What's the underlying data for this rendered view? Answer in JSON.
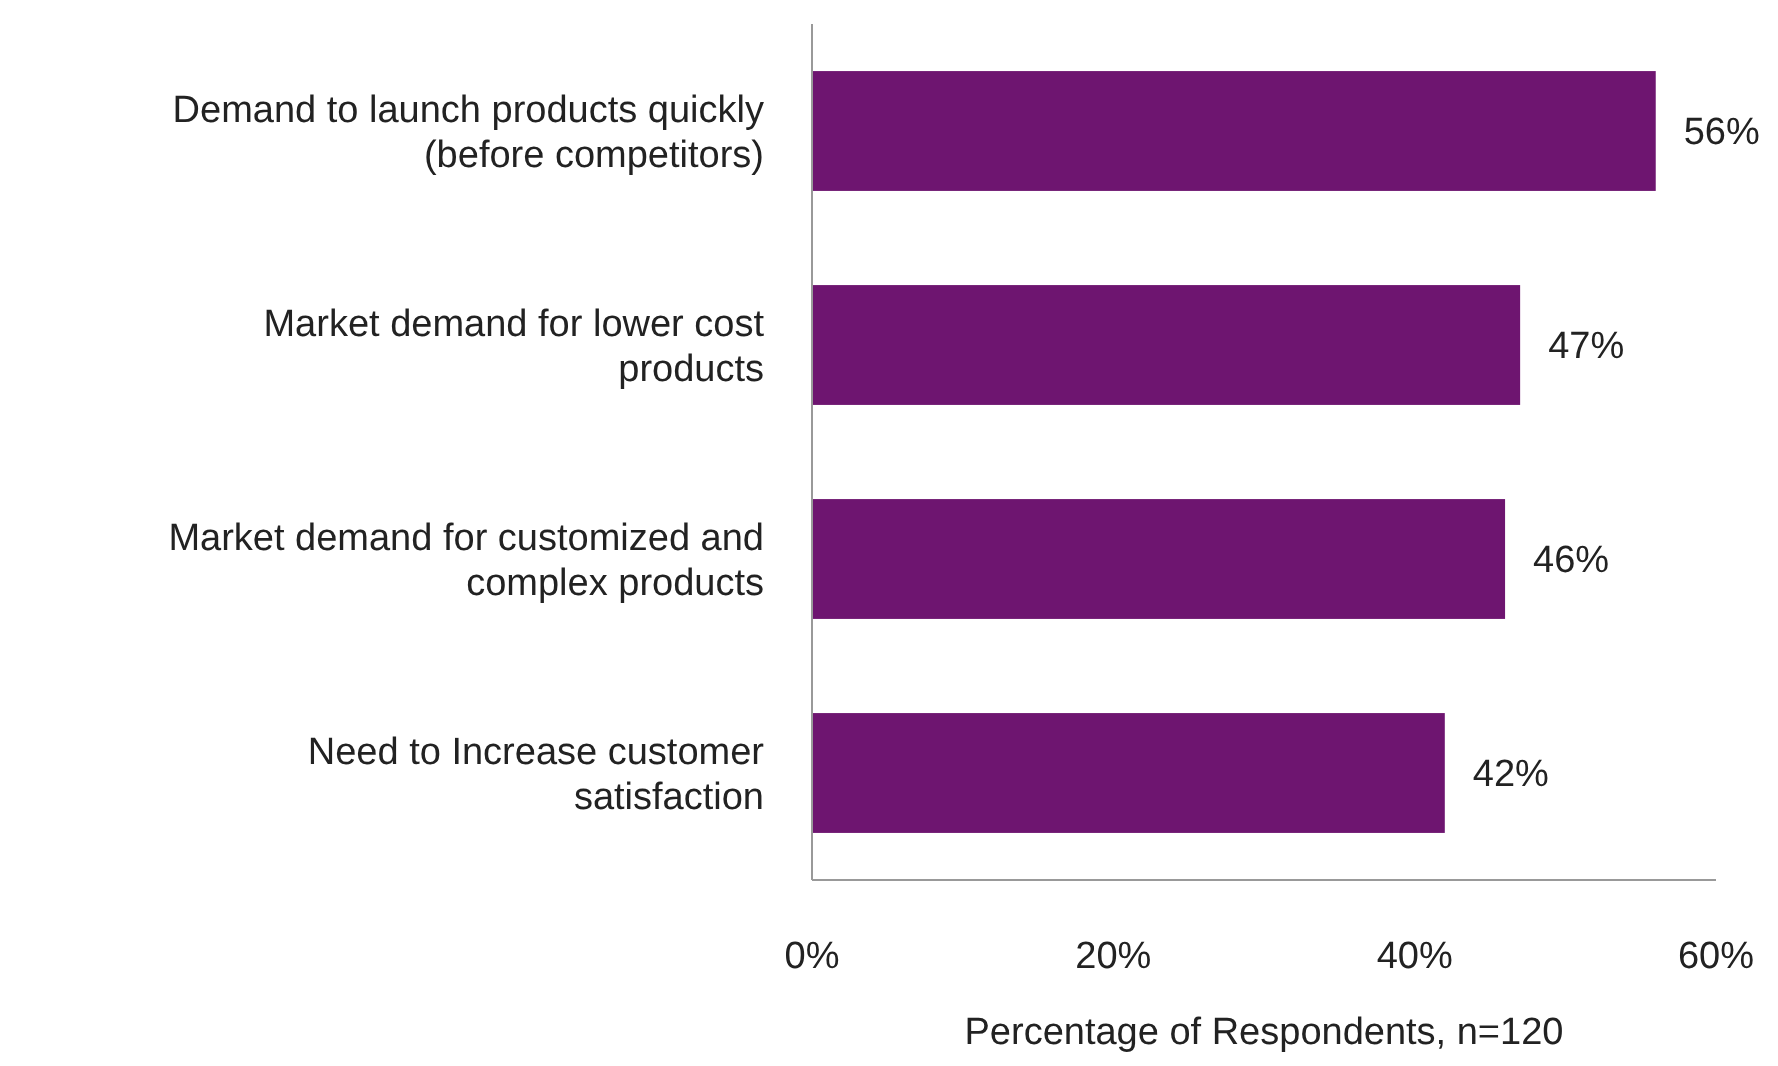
{
  "chart_data": {
    "type": "bar",
    "orientation": "horizontal",
    "xlabel": "Percentage of Respondents, n=120",
    "categories": [
      "Demand to launch products quickly (before competitors)",
      "Market demand for lower cost products",
      "Market demand for customized and complex products",
      "Need to Increase customer satisfaction"
    ],
    "values": [
      56,
      47,
      46,
      42
    ],
    "value_labels": [
      "56%",
      "47%",
      "46%",
      "42%"
    ],
    "color": "#6e1570",
    "xlim": [
      0,
      60
    ],
    "xticks": [
      {
        "value": 0,
        "label": "0%"
      },
      {
        "value": 20,
        "label": "20%"
      },
      {
        "value": 40,
        "label": "40%"
      },
      {
        "value": 60,
        "label": "60%"
      }
    ],
    "grid": false
  }
}
